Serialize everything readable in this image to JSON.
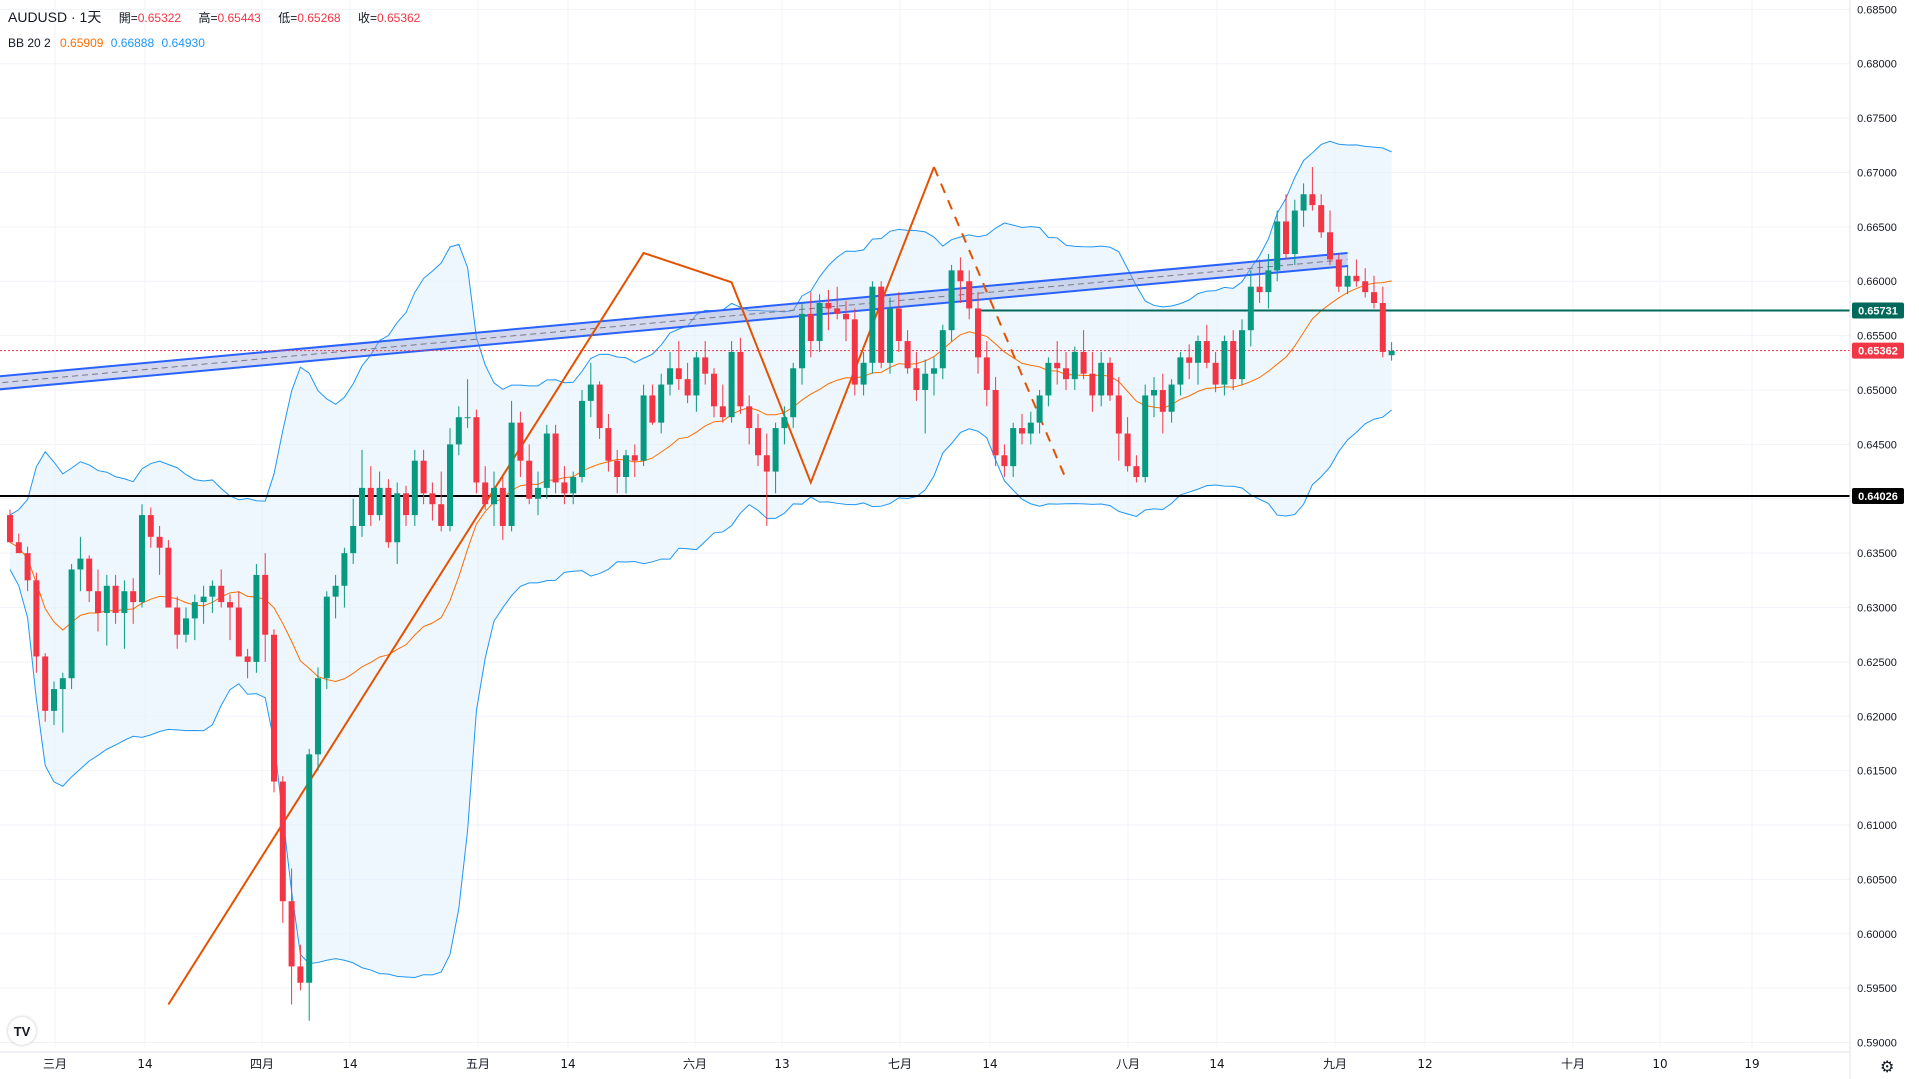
{
  "header": {
    "symbol": "AUDUSD · 1天",
    "open_label": "開=",
    "open": "0.65322",
    "high_label": "高=",
    "high": "0.65443",
    "low_label": "低=",
    "low": "0.65268",
    "close_label": "收=",
    "close": "0.65362"
  },
  "indicator": {
    "name": "BB 20 2",
    "basis": "0.65909",
    "upper": "0.66888",
    "lower": "0.64930"
  },
  "colors": {
    "up": "#089981",
    "down": "#f23645",
    "bb_basis": "#ff6d00",
    "bb_band": "#2196f3",
    "bb_fill": "#e3f2fd",
    "channel": "#2962ff",
    "trend": "#e65100"
  },
  "chart_data": {
    "type": "candlestick",
    "symbol": "AUDUSD",
    "timeframe": "1天",
    "ylim": [
      0.5895,
      0.6854
    ],
    "y_ticks": [
      "0.68500",
      "0.68000",
      "0.67500",
      "0.67000",
      "0.66500",
      "0.66000",
      "0.65500",
      "0.65000",
      "0.64500",
      "0.64000",
      "0.63500",
      "0.63000",
      "0.62500",
      "0.62000",
      "0.61500",
      "0.61000",
      "0.60500",
      "0.60000",
      "0.59500",
      "0.59000"
    ],
    "x_ticks": [
      "三月",
      "14",
      "四月",
      "14",
      "五月",
      "14",
      "六月",
      "13",
      "七月",
      "14",
      "八月",
      "14",
      "九月",
      "12",
      "十月",
      "10",
      "19"
    ],
    "price_labels": [
      {
        "text": "0.65731",
        "value": 0.65731,
        "color": "#00695c"
      },
      {
        "text": "0.65362",
        "value": 0.65362,
        "color": "#f23645"
      },
      {
        "text": "0.64026",
        "value": 0.64026,
        "color": "#000000"
      }
    ],
    "candles": [
      [
        0.6385,
        0.639,
        0.636,
        0.636
      ],
      [
        0.636,
        0.6368,
        0.6355,
        0.635
      ],
      [
        0.635,
        0.6356,
        0.6315,
        0.6325
      ],
      [
        0.6325,
        0.6332,
        0.624,
        0.6255
      ],
      [
        0.6255,
        0.6258,
        0.6195,
        0.6205
      ],
      [
        0.6205,
        0.6232,
        0.6192,
        0.6225
      ],
      [
        0.6225,
        0.624,
        0.6185,
        0.6235
      ],
      [
        0.6235,
        0.634,
        0.6225,
        0.6335
      ],
      [
        0.6335,
        0.6365,
        0.6315,
        0.6345
      ],
      [
        0.6345,
        0.6348,
        0.6305,
        0.6315
      ],
      [
        0.6315,
        0.6335,
        0.6278,
        0.6295
      ],
      [
        0.6295,
        0.633,
        0.6265,
        0.632
      ],
      [
        0.632,
        0.633,
        0.6285,
        0.6295
      ],
      [
        0.6295,
        0.6325,
        0.6262,
        0.6315
      ],
      [
        0.6315,
        0.6327,
        0.6285,
        0.6305
      ],
      [
        0.6305,
        0.6395,
        0.63,
        0.6385
      ],
      [
        0.6385,
        0.6392,
        0.6355,
        0.6365
      ],
      [
        0.6365,
        0.6375,
        0.633,
        0.6355
      ],
      [
        0.6355,
        0.6362,
        0.6305,
        0.63
      ],
      [
        0.63,
        0.631,
        0.6262,
        0.6275
      ],
      [
        0.6275,
        0.63,
        0.6268,
        0.629
      ],
      [
        0.629,
        0.6312,
        0.627,
        0.6305
      ],
      [
        0.6305,
        0.632,
        0.6285,
        0.631
      ],
      [
        0.631,
        0.6325,
        0.6295,
        0.632
      ],
      [
        0.632,
        0.6335,
        0.63,
        0.6305
      ],
      [
        0.6305,
        0.6312,
        0.627,
        0.63
      ],
      [
        0.63,
        0.6315,
        0.6255,
        0.6255
      ],
      [
        0.6255,
        0.6262,
        0.6235,
        0.625
      ],
      [
        0.625,
        0.634,
        0.624,
        0.633
      ],
      [
        0.633,
        0.635,
        0.625,
        0.6275
      ],
      [
        0.6275,
        0.628,
        0.613,
        0.614
      ],
      [
        0.614,
        0.6145,
        0.601,
        0.603
      ],
      [
        0.603,
        0.606,
        0.5935,
        0.597
      ],
      [
        0.597,
        0.599,
        0.5948,
        0.5955
      ],
      [
        0.5955,
        0.617,
        0.592,
        0.6165
      ],
      [
        0.6165,
        0.6245,
        0.615,
        0.6235
      ],
      [
        0.6235,
        0.6315,
        0.6225,
        0.631
      ],
      [
        0.631,
        0.633,
        0.629,
        0.632
      ],
      [
        0.632,
        0.6355,
        0.63,
        0.635
      ],
      [
        0.635,
        0.64,
        0.634,
        0.6375
      ],
      [
        0.6375,
        0.6445,
        0.6365,
        0.641
      ],
      [
        0.641,
        0.643,
        0.6375,
        0.6385
      ],
      [
        0.6385,
        0.6425,
        0.638,
        0.641
      ],
      [
        0.641,
        0.6418,
        0.6355,
        0.636
      ],
      [
        0.636,
        0.6415,
        0.634,
        0.6405
      ],
      [
        0.6405,
        0.6412,
        0.6375,
        0.6385
      ],
      [
        0.6385,
        0.6445,
        0.6375,
        0.6435
      ],
      [
        0.6435,
        0.6445,
        0.6395,
        0.6405
      ],
      [
        0.6405,
        0.6415,
        0.638,
        0.6395
      ],
      [
        0.6395,
        0.6425,
        0.637,
        0.6375
      ],
      [
        0.6375,
        0.6465,
        0.637,
        0.645
      ],
      [
        0.645,
        0.6485,
        0.644,
        0.6475
      ],
      [
        0.6475,
        0.651,
        0.6465,
        0.6475
      ],
      [
        0.6475,
        0.6482,
        0.6405,
        0.6415
      ],
      [
        0.6415,
        0.643,
        0.639,
        0.6395
      ],
      [
        0.6395,
        0.6425,
        0.6375,
        0.641
      ],
      [
        0.641,
        0.642,
        0.6362,
        0.6375
      ],
      [
        0.6375,
        0.649,
        0.637,
        0.647
      ],
      [
        0.647,
        0.648,
        0.642,
        0.6435
      ],
      [
        0.6435,
        0.645,
        0.6395,
        0.64
      ],
      [
        0.64,
        0.6425,
        0.6385,
        0.641
      ],
      [
        0.641,
        0.6468,
        0.64,
        0.646
      ],
      [
        0.646,
        0.6468,
        0.6405,
        0.6415
      ],
      [
        0.6415,
        0.643,
        0.6395,
        0.6405
      ],
      [
        0.6405,
        0.6425,
        0.6395,
        0.642
      ],
      [
        0.642,
        0.65,
        0.6415,
        0.649
      ],
      [
        0.649,
        0.6525,
        0.6475,
        0.6505
      ],
      [
        0.6505,
        0.6508,
        0.6455,
        0.6465
      ],
      [
        0.6465,
        0.6478,
        0.6425,
        0.6435
      ],
      [
        0.6435,
        0.6445,
        0.6405,
        0.642
      ],
      [
        0.642,
        0.6445,
        0.6405,
        0.644
      ],
      [
        0.644,
        0.645,
        0.642,
        0.6435
      ],
      [
        0.6435,
        0.6505,
        0.643,
        0.6495
      ],
      [
        0.6495,
        0.6505,
        0.6468,
        0.647
      ],
      [
        0.647,
        0.6515,
        0.646,
        0.6505
      ],
      [
        0.6505,
        0.6535,
        0.6495,
        0.652
      ],
      [
        0.652,
        0.6545,
        0.65,
        0.651
      ],
      [
        0.651,
        0.6525,
        0.6488,
        0.6495
      ],
      [
        0.6495,
        0.6535,
        0.648,
        0.653
      ],
      [
        0.653,
        0.6545,
        0.6505,
        0.6515
      ],
      [
        0.6515,
        0.652,
        0.6475,
        0.6485
      ],
      [
        0.6485,
        0.6505,
        0.647,
        0.6475
      ],
      [
        0.6475,
        0.6545,
        0.647,
        0.6535
      ],
      [
        0.6535,
        0.6548,
        0.6478,
        0.6485
      ],
      [
        0.6485,
        0.6495,
        0.645,
        0.6465
      ],
      [
        0.6465,
        0.6478,
        0.643,
        0.644
      ],
      [
        0.644,
        0.646,
        0.6375,
        0.6425
      ],
      [
        0.6425,
        0.647,
        0.6405,
        0.6465
      ],
      [
        0.6465,
        0.6485,
        0.645,
        0.6475
      ],
      [
        0.6475,
        0.6525,
        0.6465,
        0.652
      ],
      [
        0.652,
        0.658,
        0.6505,
        0.657
      ],
      [
        0.657,
        0.659,
        0.653,
        0.6545
      ],
      [
        0.6545,
        0.6588,
        0.6535,
        0.658
      ],
      [
        0.658,
        0.6592,
        0.6555,
        0.6575
      ],
      [
        0.6575,
        0.6595,
        0.6565,
        0.657
      ],
      [
        0.657,
        0.6582,
        0.6545,
        0.6565
      ],
      [
        0.6565,
        0.6575,
        0.6495,
        0.6505
      ],
      [
        0.6505,
        0.6535,
        0.6495,
        0.6525
      ],
      [
        0.6525,
        0.66,
        0.6515,
        0.6595
      ],
      [
        0.6595,
        0.66,
        0.652,
        0.6525
      ],
      [
        0.6525,
        0.6585,
        0.6515,
        0.6575
      ],
      [
        0.6575,
        0.659,
        0.6535,
        0.6545
      ],
      [
        0.6545,
        0.6555,
        0.6515,
        0.652
      ],
      [
        0.652,
        0.6535,
        0.649,
        0.65
      ],
      [
        0.65,
        0.6528,
        0.646,
        0.6515
      ],
      [
        0.6515,
        0.653,
        0.6495,
        0.652
      ],
      [
        0.652,
        0.656,
        0.651,
        0.6555
      ],
      [
        0.6555,
        0.6615,
        0.6545,
        0.661
      ],
      [
        0.661,
        0.6622,
        0.658,
        0.66
      ],
      [
        0.66,
        0.661,
        0.6565,
        0.6575
      ],
      [
        0.6575,
        0.659,
        0.6515,
        0.653
      ],
      [
        0.653,
        0.6545,
        0.6485,
        0.65
      ],
      [
        0.65,
        0.6512,
        0.643,
        0.644
      ],
      [
        0.644,
        0.645,
        0.642,
        0.643
      ],
      [
        0.643,
        0.647,
        0.642,
        0.6465
      ],
      [
        0.6465,
        0.6478,
        0.645,
        0.646
      ],
      [
        0.646,
        0.648,
        0.645,
        0.647
      ],
      [
        0.647,
        0.65,
        0.646,
        0.6495
      ],
      [
        0.6495,
        0.653,
        0.6485,
        0.6525
      ],
      [
        0.6525,
        0.6545,
        0.6505,
        0.652
      ],
      [
        0.652,
        0.6535,
        0.65,
        0.651
      ],
      [
        0.651,
        0.654,
        0.65,
        0.6535
      ],
      [
        0.6535,
        0.6555,
        0.651,
        0.6515
      ],
      [
        0.6515,
        0.6535,
        0.648,
        0.6495
      ],
      [
        0.6495,
        0.6535,
        0.6485,
        0.6525
      ],
      [
        0.6525,
        0.653,
        0.649,
        0.6495
      ],
      [
        0.6495,
        0.6512,
        0.6435,
        0.646
      ],
      [
        0.646,
        0.6475,
        0.6425,
        0.643
      ],
      [
        0.643,
        0.644,
        0.6415,
        0.642
      ],
      [
        0.642,
        0.6505,
        0.6415,
        0.6495
      ],
      [
        0.6495,
        0.6512,
        0.6475,
        0.65
      ],
      [
        0.65,
        0.6515,
        0.646,
        0.648
      ],
      [
        0.648,
        0.651,
        0.647,
        0.6505
      ],
      [
        0.6505,
        0.6535,
        0.6495,
        0.653
      ],
      [
        0.653,
        0.6542,
        0.651,
        0.6525
      ],
      [
        0.6525,
        0.655,
        0.6505,
        0.6545
      ],
      [
        0.6545,
        0.656,
        0.652,
        0.6525
      ],
      [
        0.6525,
        0.6535,
        0.6498,
        0.6505
      ],
      [
        0.6505,
        0.655,
        0.6495,
        0.6545
      ],
      [
        0.6545,
        0.6555,
        0.65,
        0.651
      ],
      [
        0.651,
        0.6565,
        0.6505,
        0.6555
      ],
      [
        0.6555,
        0.661,
        0.654,
        0.6595
      ],
      [
        0.6595,
        0.662,
        0.658,
        0.659
      ],
      [
        0.659,
        0.6625,
        0.6575,
        0.661
      ],
      [
        0.661,
        0.6665,
        0.66,
        0.6655
      ],
      [
        0.6655,
        0.668,
        0.662,
        0.6625
      ],
      [
        0.6625,
        0.6675,
        0.6615,
        0.6665
      ],
      [
        0.6665,
        0.669,
        0.665,
        0.668
      ],
      [
        0.668,
        0.6705,
        0.6665,
        0.667
      ],
      [
        0.667,
        0.668,
        0.664,
        0.6645
      ],
      [
        0.6645,
        0.6665,
        0.6615,
        0.662
      ],
      [
        0.662,
        0.6625,
        0.659,
        0.6595
      ],
      [
        0.6595,
        0.6615,
        0.6588,
        0.6605
      ],
      [
        0.6605,
        0.662,
        0.6595,
        0.66
      ],
      [
        0.66,
        0.6612,
        0.6585,
        0.659
      ],
      [
        0.659,
        0.6605,
        0.6575,
        0.658
      ],
      [
        0.658,
        0.6595,
        0.653,
        0.6535
      ],
      [
        0.6532,
        0.6544,
        0.6527,
        0.6536
      ]
    ],
    "bb": {
      "period": 20,
      "stddev": 2,
      "basis": [
        0.6305,
        0.6318,
        0.63,
        0.629,
        0.6292,
        0.6298,
        0.6296,
        0.6301,
        0.6305,
        0.6296,
        0.6295,
        0.63,
        0.63,
        0.6302,
        0.6305,
        0.63,
        0.6295,
        0.629,
        0.6275,
        0.6255,
        0.6255,
        0.6268,
        0.628,
        0.629,
        0.63,
        0.6308,
        0.6322,
        0.6337,
        0.635,
        0.636,
        0.6372,
        0.6385,
        0.64,
        0.641,
        0.6418,
        0.6425,
        0.6432,
        0.6437,
        0.6443,
        0.645,
        0.6458,
        0.6465,
        0.647,
        0.6478,
        0.6486,
        0.6494,
        0.6502,
        0.6507,
        0.6512,
        0.652,
        0.6527,
        0.6534,
        0.6538,
        0.6541,
        0.6544,
        0.6548,
        0.6554,
        0.6558,
        0.6561,
        0.6564,
        0.6566,
        0.6566,
        0.6564,
        0.656,
        0.6557,
        0.6553,
        0.655,
        0.6545,
        0.654,
        0.6535,
        0.653,
        0.6526,
        0.6524,
        0.6524,
        0.6525,
        0.6527,
        0.653,
        0.6535,
        0.654,
        0.6545,
        0.6552,
        0.656,
        0.6565,
        0.6568,
        0.6572,
        0.6577,
        0.658,
        0.6582,
        0.6585,
        0.659
      ]
    },
    "annotations": {
      "resistance_channel": {
        "from": {
          "bar": -2,
          "top": 0.6512,
          "bottom": 0.65
        },
        "to": {
          "bar": 152,
          "top": 0.6626,
          "bottom": 0.6614
        }
      },
      "support_line": 0.64026,
      "resistance_line": 0.65731,
      "zigzag": [
        [
          18,
          0.5935
        ],
        [
          72,
          0.6626
        ],
        [
          82,
          0.6599
        ],
        [
          91,
          0.6415
        ],
        [
          105,
          0.6705
        ]
      ],
      "projection": [
        [
          105,
          0.6705
        ],
        [
          120,
          0.6418
        ]
      ]
    }
  }
}
